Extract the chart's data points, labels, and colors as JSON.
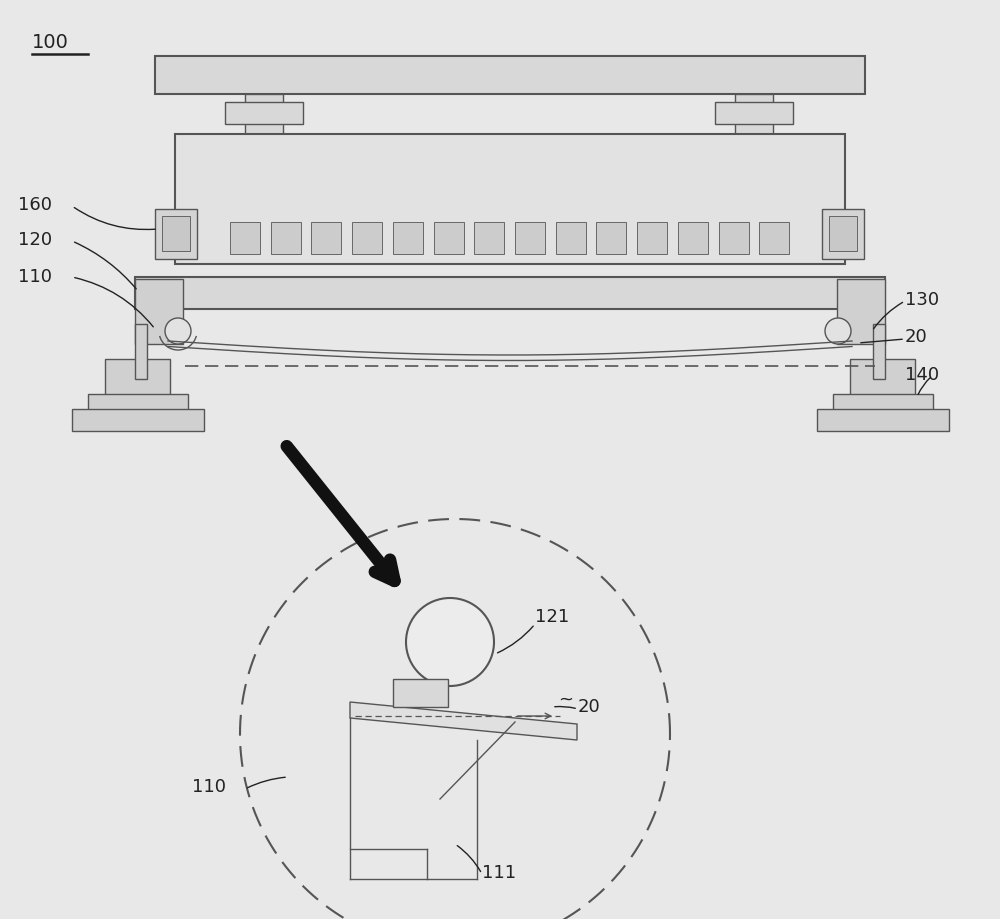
{
  "bg_color": "#e8e8e8",
  "line_color": "#555555",
  "dark_color": "#222222",
  "label_100": "100",
  "label_160": "160",
  "label_120": "120",
  "label_110": "110",
  "label_130": "130",
  "label_20": "20",
  "label_140": "140",
  "label_121": "121",
  "label_111": "111"
}
